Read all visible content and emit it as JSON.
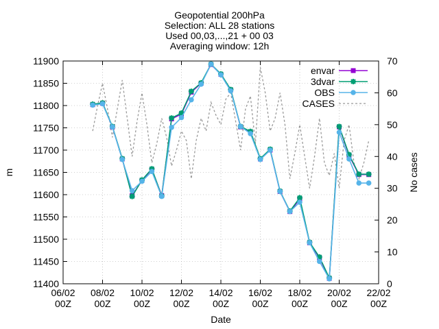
{
  "chart_data": {
    "type": "line",
    "title_lines": [
      "Geopotential 200hPa",
      "Selection: ALL      28 stations",
      "Used 00,03,...,21 + 00 03",
      "Averaging window: 12h"
    ],
    "xlabel": "Date",
    "ylabel": "m",
    "y2label": "No cases",
    "xlim": [
      0,
      16
    ],
    "ylim": [
      11400,
      11900
    ],
    "y2lim": [
      0,
      70
    ],
    "x_ticks": [
      {
        "x": 0,
        "line1": "06/02",
        "line2": "00Z"
      },
      {
        "x": 2,
        "line1": "08/02",
        "line2": "00Z"
      },
      {
        "x": 4,
        "line1": "10/02",
        "line2": "00Z"
      },
      {
        "x": 6,
        "line1": "12/02",
        "line2": "00Z"
      },
      {
        "x": 8,
        "line1": "14/02",
        "line2": "00Z"
      },
      {
        "x": 10,
        "line1": "16/02",
        "line2": "00Z"
      },
      {
        "x": 12,
        "line1": "18/02",
        "line2": "00Z"
      },
      {
        "x": 14,
        "line1": "20/02",
        "line2": "00Z"
      },
      {
        "x": 16,
        "line1": "22/02",
        "line2": "00Z"
      }
    ],
    "y_ticks": [
      "11400",
      "11450",
      "11500",
      "11550",
      "11600",
      "11650",
      "11700",
      "11750",
      "11800",
      "11850",
      "11900"
    ],
    "y2_ticks": [
      "0",
      "10",
      "20",
      "30",
      "40",
      "50",
      "60",
      "70"
    ],
    "legend_position": "top-right",
    "series": [
      {
        "name": "envar",
        "color": "#9400d3",
        "marker": "square",
        "x": [
          1.5,
          2,
          2.5,
          3,
          3.5,
          4,
          4.5,
          5,
          5.5,
          6,
          6.5,
          7,
          7.5,
          8,
          8.5,
          9,
          9.5,
          10,
          10.5,
          11,
          11.5,
          12,
          12.5,
          13,
          13.5,
          14,
          14.5,
          15,
          15.5
        ],
        "y": [
          11802,
          11805,
          11752,
          11680,
          11598,
          11632,
          11657,
          11598,
          11770,
          11781,
          11830,
          11850,
          11892,
          11870,
          11835,
          11752,
          11740,
          11680,
          11700,
          11607,
          11562,
          11590,
          11492,
          11458,
          11412,
          11752,
          11688,
          11645,
          11645
        ]
      },
      {
        "name": "3dvar",
        "color": "#009e73",
        "marker": "star",
        "x": [
          1.5,
          2,
          2.5,
          3,
          3.5,
          4,
          4.5,
          5,
          5.5,
          6,
          6.5,
          7,
          7.5,
          8,
          8.5,
          9,
          9.5,
          10,
          10.5,
          11,
          11.5,
          12,
          12.5,
          13,
          13.5,
          14,
          14.5,
          15,
          15.5
        ],
        "y": [
          11803,
          11806,
          11753,
          11681,
          11596,
          11633,
          11658,
          11597,
          11772,
          11783,
          11832,
          11851,
          11893,
          11871,
          11836,
          11753,
          11742,
          11681,
          11702,
          11608,
          11563,
          11593,
          11493,
          11460,
          11413,
          11753,
          11690,
          11646,
          11646
        ]
      },
      {
        "name": "OBS",
        "color": "#56b4e9",
        "marker": "circle",
        "x": [
          1.5,
          2,
          2.5,
          3,
          3.5,
          4,
          4.5,
          5,
          5.5,
          6,
          6.5,
          7,
          7.5,
          8,
          8.5,
          9,
          9.5,
          10,
          10.5,
          11,
          11.5,
          12,
          12.5,
          13,
          13.5,
          14,
          14.5,
          15,
          15.5
        ],
        "y": [
          11801,
          11804,
          11752,
          11679,
          11609,
          11630,
          11652,
          11596,
          11751,
          11773,
          11813,
          11848,
          11893,
          11869,
          11833,
          11753,
          11737,
          11679,
          11700,
          11607,
          11562,
          11583,
          11492,
          11450,
          11411,
          11740,
          11680,
          11626,
          11626
        ]
      },
      {
        "name": "CASES",
        "color": "#999999",
        "marker": "none",
        "dashed": true,
        "axis": "y2",
        "x": [
          1.5,
          1.75,
          2,
          2.25,
          2.5,
          2.75,
          3,
          3.25,
          3.5,
          3.75,
          4,
          4.25,
          4.5,
          4.75,
          5,
          5.25,
          5.5,
          5.75,
          6,
          6.25,
          6.5,
          6.75,
          7,
          7.25,
          7.5,
          7.75,
          8,
          8.25,
          8.5,
          8.75,
          9,
          9.25,
          9.5,
          9.75,
          10,
          10.25,
          10.5,
          10.75,
          11,
          11.25,
          11.5,
          11.75,
          12,
          12.25,
          12.5,
          12.75,
          13,
          13.25,
          13.5,
          13.75,
          14,
          14.25,
          14.5,
          14.75,
          15,
          15.25,
          15.5
        ],
        "y": [
          48,
          56,
          63,
          55,
          46,
          55,
          64,
          52,
          40,
          51,
          60,
          50,
          38,
          44,
          52,
          46,
          37,
          42,
          48,
          45,
          33,
          45,
          52,
          48,
          57,
          53,
          50,
          58,
          60,
          51,
          42,
          55,
          59,
          44,
          68,
          60,
          48,
          52,
          60,
          50,
          33,
          41,
          50,
          40,
          30,
          40,
          52,
          38,
          34,
          41,
          30,
          45,
          50,
          38,
          33,
          38,
          45
        ]
      }
    ]
  }
}
